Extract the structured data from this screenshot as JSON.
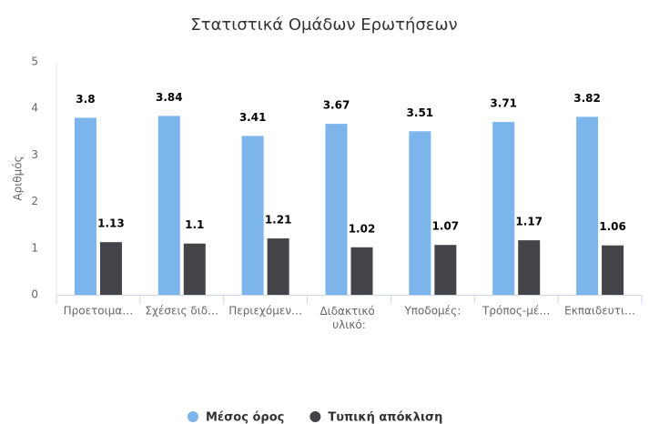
{
  "chart_data": {
    "type": "bar",
    "title": "Στατιστικά Ομάδων Ερωτήσεων",
    "y_label": "Αριθμός",
    "categories": [
      "Προετοιμα…",
      "Σχέσεις διδ…",
      "Περιεχόμεν…",
      "Διδακτικό υλικό:",
      "Υποδομές:",
      "Τρόπος-μέ…",
      "Εκπαιδευτι…"
    ],
    "series": [
      {
        "name": "Μέσος όρος",
        "color": "#7cb5ec",
        "values": [
          3.8,
          3.84,
          3.41,
          3.67,
          3.51,
          3.71,
          3.82
        ]
      },
      {
        "name": "Τυπική απόκλιση",
        "color": "#434348",
        "values": [
          1.13,
          1.1,
          1.21,
          1.02,
          1.07,
          1.17,
          1.06
        ]
      }
    ],
    "ylim": [
      0,
      5
    ],
    "yticks": [
      0,
      1,
      2,
      3,
      4,
      5
    ],
    "grid": false,
    "legend": "bottom"
  }
}
